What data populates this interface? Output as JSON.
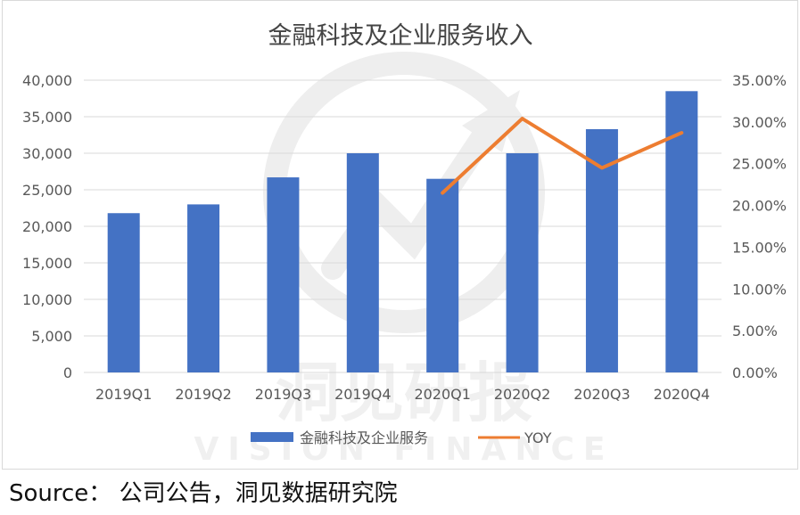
{
  "chart_data": {
    "type": "bar",
    "title": "金融科技及企业服务收入",
    "categories": [
      "2019Q1",
      "2019Q2",
      "2019Q3",
      "2019Q4",
      "2020Q1",
      "2020Q2",
      "2020Q3",
      "2020Q4"
    ],
    "series": [
      {
        "name": "金融科技及企业服务",
        "type": "bar",
        "axis": "left",
        "color": "#4472c4",
        "values": [
          21800,
          23000,
          26700,
          30000,
          26500,
          30000,
          33300,
          38500
        ]
      },
      {
        "name": "YOY",
        "type": "line",
        "axis": "right",
        "color": "#ed7d31",
        "values": [
          null,
          null,
          null,
          null,
          0.215,
          0.304,
          0.245,
          0.287
        ]
      }
    ],
    "y_left": {
      "lim": [
        0,
        40000
      ],
      "ticks": [
        0,
        5000,
        10000,
        15000,
        20000,
        25000,
        30000,
        35000,
        40000
      ],
      "tick_labels": [
        "0",
        "5,000",
        "10,000",
        "15,000",
        "20,000",
        "25,000",
        "30,000",
        "35,000",
        "40,000"
      ]
    },
    "y_right": {
      "lim": [
        0,
        0.35
      ],
      "ticks": [
        0,
        0.05,
        0.1,
        0.15,
        0.2,
        0.25,
        0.3,
        0.35
      ],
      "tick_labels": [
        "0.00%",
        "5.00%",
        "10.00%",
        "15.00%",
        "20.00%",
        "25.00%",
        "30.00%",
        "35.00%"
      ]
    },
    "grid": true,
    "legend_position": "bottom"
  },
  "watermark": {
    "cn": "洞见研报",
    "en": "VISION FINANCE"
  },
  "source": "Source：  公司公告，洞见数据研究院"
}
